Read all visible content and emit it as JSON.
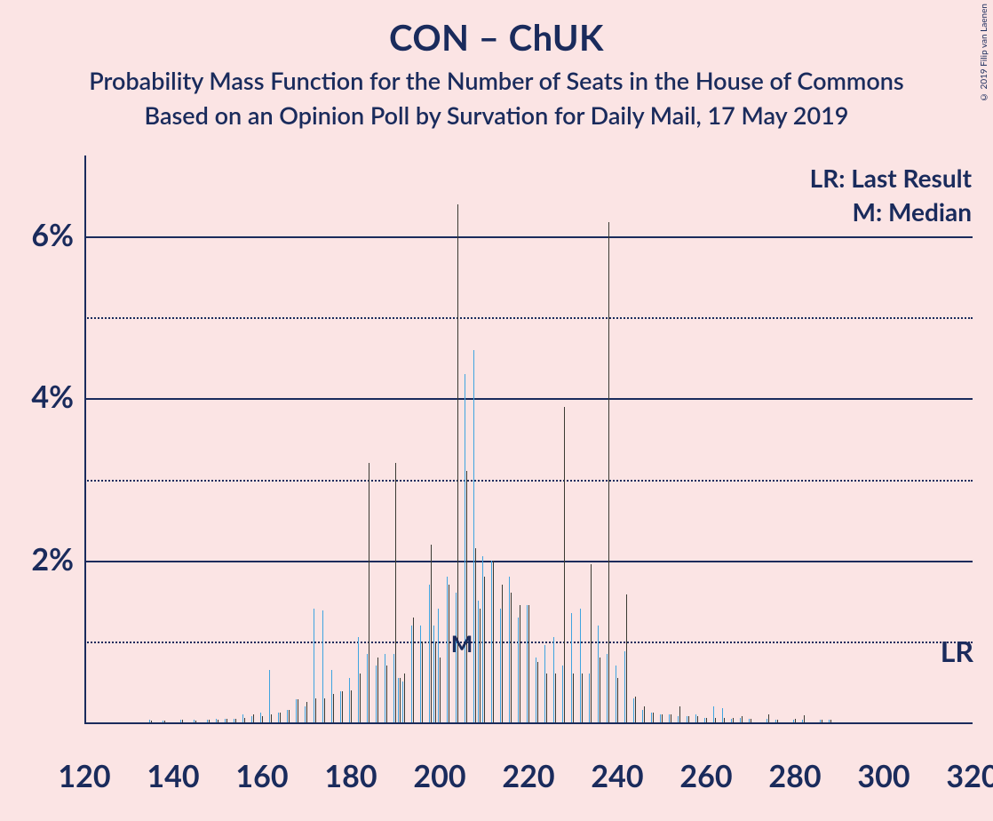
{
  "title": "CON – ChUK",
  "subtitle1": "Probability Mass Function for the Number of Seats in the House of Commons",
  "subtitle2": "Based on an Opinion Poll by Survation for Daily Mail, 17 May 2019",
  "copyright": "© 2019 Filip van Laenen",
  "legend": {
    "lr": "LR: Last Result",
    "m": "M: Median"
  },
  "lr_label": "LR",
  "m_label": "M",
  "chart": {
    "type": "bar-pmf-dual",
    "background_color": "#fbe4e4",
    "axis_color": "#1a2b5c",
    "text_color": "#1a2b5c",
    "colors": {
      "series_a": "#3fa4e0",
      "series_b": "#3a3a32"
    },
    "xlim": [
      120,
      320
    ],
    "ylim": [
      0,
      7
    ],
    "xticks": [
      120,
      140,
      160,
      180,
      200,
      220,
      240,
      260,
      280,
      300,
      320
    ],
    "yticks_major": [
      2,
      4,
      6
    ],
    "yticks_minor": [
      1,
      3,
      5
    ],
    "median_x": 205,
    "lr_y_label_at": 0.9,
    "bar_group_width": 4.2,
    "bar_sub_width": 1.6,
    "title_fontsize": 40,
    "subtitle_fontsize": 27,
    "axis_label_fontsize": 34,
    "legend_fontsize": 28,
    "series": [
      {
        "x": 135,
        "a": 0.03,
        "b": 0.02
      },
      {
        "x": 138,
        "a": 0.02,
        "b": 0.02
      },
      {
        "x": 142,
        "a": 0.03,
        "b": 0.03
      },
      {
        "x": 145,
        "a": 0.03,
        "b": 0.02
      },
      {
        "x": 148,
        "a": 0.03,
        "b": 0.03
      },
      {
        "x": 150,
        "a": 0.04,
        "b": 0.03
      },
      {
        "x": 152,
        "a": 0.04,
        "b": 0.04
      },
      {
        "x": 154,
        "a": 0.04,
        "b": 0.04
      },
      {
        "x": 156,
        "a": 0.1,
        "b": 0.05
      },
      {
        "x": 158,
        "a": 0.08,
        "b": 0.1
      },
      {
        "x": 160,
        "a": 0.12,
        "b": 0.08
      },
      {
        "x": 162,
        "a": 0.65,
        "b": 0.1
      },
      {
        "x": 164,
        "a": 0.12,
        "b": 0.12
      },
      {
        "x": 166,
        "a": 0.15,
        "b": 0.15
      },
      {
        "x": 168,
        "a": 0.28,
        "b": 0.28
      },
      {
        "x": 170,
        "a": 0.2,
        "b": 0.25
      },
      {
        "x": 172,
        "a": 1.4,
        "b": 0.3
      },
      {
        "x": 174,
        "a": 1.38,
        "b": 0.3
      },
      {
        "x": 176,
        "a": 0.65,
        "b": 0.35
      },
      {
        "x": 178,
        "a": 0.38,
        "b": 0.38
      },
      {
        "x": 180,
        "a": 0.55,
        "b": 0.4
      },
      {
        "x": 182,
        "a": 1.05,
        "b": 0.6
      },
      {
        "x": 184,
        "a": 0.85,
        "b": 3.2
      },
      {
        "x": 186,
        "a": 0.7,
        "b": 0.8
      },
      {
        "x": 188,
        "a": 0.85,
        "b": 0.7
      },
      {
        "x": 190,
        "a": 0.85,
        "b": 3.2
      },
      {
        "x": 191,
        "a": 0.55,
        "b": 0.55
      },
      {
        "x": 192,
        "a": 0.5,
        "b": 0.6
      },
      {
        "x": 194,
        "a": 1.2,
        "b": 1.3
      },
      {
        "x": 196,
        "a": 1.2,
        "b": 1.0
      },
      {
        "x": 198,
        "a": 1.7,
        "b": 2.2
      },
      {
        "x": 199,
        "a": 1.2,
        "b": 1.0
      },
      {
        "x": 200,
        "a": 1.4,
        "b": 0.8
      },
      {
        "x": 202,
        "a": 1.8,
        "b": 1.7
      },
      {
        "x": 204,
        "a": 1.6,
        "b": 6.4
      },
      {
        "x": 206,
        "a": 4.3,
        "b": 3.1
      },
      {
        "x": 208,
        "a": 4.6,
        "b": 2.15
      },
      {
        "x": 209,
        "a": 1.5,
        "b": 1.4
      },
      {
        "x": 210,
        "a": 2.05,
        "b": 1.8
      },
      {
        "x": 212,
        "a": 2.0,
        "b": 2.0
      },
      {
        "x": 214,
        "a": 1.4,
        "b": 1.7
      },
      {
        "x": 216,
        "a": 1.8,
        "b": 1.6
      },
      {
        "x": 218,
        "a": 1.3,
        "b": 1.45
      },
      {
        "x": 220,
        "a": 1.45,
        "b": 1.45
      },
      {
        "x": 222,
        "a": 0.8,
        "b": 0.75
      },
      {
        "x": 224,
        "a": 0.95,
        "b": 0.6
      },
      {
        "x": 226,
        "a": 1.05,
        "b": 0.6
      },
      {
        "x": 228,
        "a": 0.7,
        "b": 3.9
      },
      {
        "x": 230,
        "a": 1.35,
        "b": 0.6
      },
      {
        "x": 232,
        "a": 1.4,
        "b": 0.6
      },
      {
        "x": 234,
        "a": 0.6,
        "b": 1.95
      },
      {
        "x": 236,
        "a": 1.2,
        "b": 0.8
      },
      {
        "x": 238,
        "a": 0.85,
        "b": 6.18
      },
      {
        "x": 240,
        "a": 0.7,
        "b": 0.55
      },
      {
        "x": 242,
        "a": 0.88,
        "b": 1.58
      },
      {
        "x": 244,
        "a": 0.3,
        "b": 0.32
      },
      {
        "x": 246,
        "a": 0.15,
        "b": 0.2
      },
      {
        "x": 248,
        "a": 0.12,
        "b": 0.12
      },
      {
        "x": 250,
        "a": 0.1,
        "b": 0.1
      },
      {
        "x": 252,
        "a": 0.1,
        "b": 0.1
      },
      {
        "x": 254,
        "a": 0.08,
        "b": 0.2
      },
      {
        "x": 256,
        "a": 0.08,
        "b": 0.08
      },
      {
        "x": 258,
        "a": 0.1,
        "b": 0.08
      },
      {
        "x": 260,
        "a": 0.06,
        "b": 0.06
      },
      {
        "x": 262,
        "a": 0.2,
        "b": 0.06
      },
      {
        "x": 264,
        "a": 0.18,
        "b": 0.05
      },
      {
        "x": 266,
        "a": 0.04,
        "b": 0.05
      },
      {
        "x": 268,
        "a": 0.05,
        "b": 0.08
      },
      {
        "x": 270,
        "a": 0.04,
        "b": 0.04
      },
      {
        "x": 274,
        "a": 0.04,
        "b": 0.1
      },
      {
        "x": 276,
        "a": 0.03,
        "b": 0.03
      },
      {
        "x": 280,
        "a": 0.03,
        "b": 0.04
      },
      {
        "x": 282,
        "a": 0.03,
        "b": 0.09
      },
      {
        "x": 286,
        "a": 0.03,
        "b": 0.03
      },
      {
        "x": 288,
        "a": 0.03,
        "b": 0.03
      }
    ]
  }
}
